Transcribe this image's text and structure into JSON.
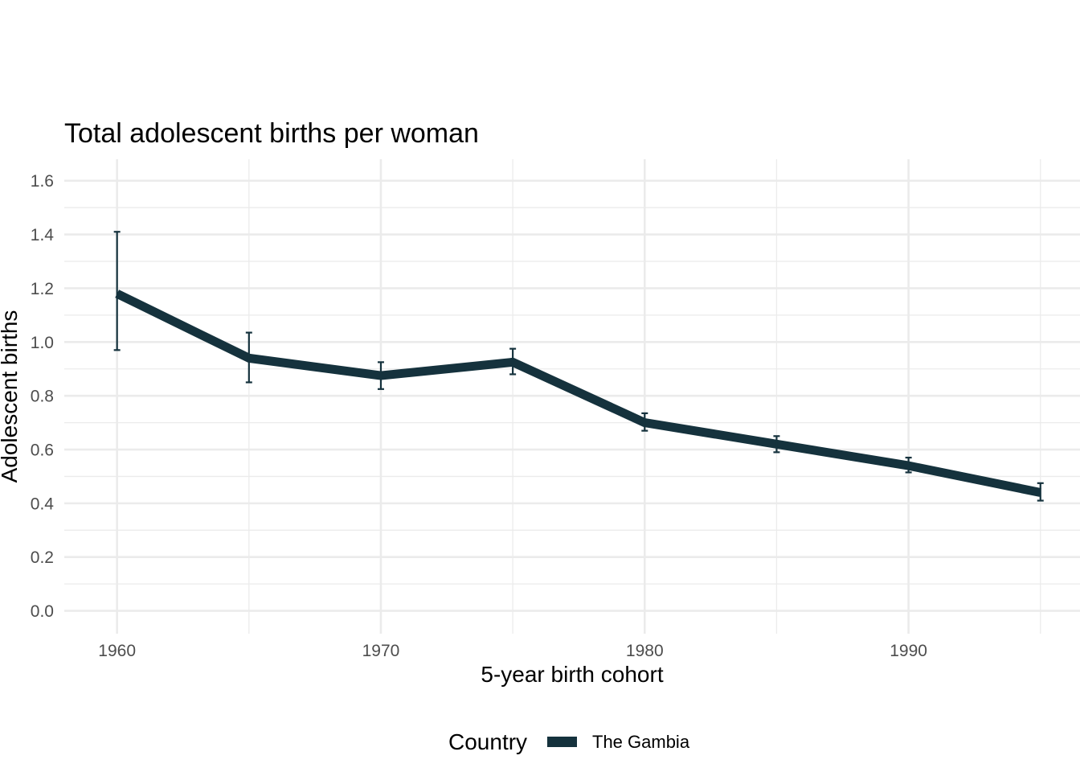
{
  "chart_data": {
    "type": "line",
    "title": "Total adolescent births per woman",
    "xlabel": "5-year birth cohort",
    "ylabel": "Adolescent births",
    "x": [
      1960,
      1965,
      1970,
      1975,
      1980,
      1985,
      1990,
      1995
    ],
    "series": [
      {
        "name": "The Gambia",
        "color": "#15323d",
        "values": [
          1.18,
          0.94,
          0.875,
          0.925,
          0.7,
          0.62,
          0.54,
          0.44
        ],
        "error_low": [
          0.97,
          0.85,
          0.825,
          0.88,
          0.67,
          0.59,
          0.515,
          0.41
        ],
        "error_high": [
          1.41,
          1.035,
          0.925,
          0.975,
          0.735,
          0.65,
          0.57,
          0.475
        ]
      }
    ],
    "xlim": [
      1958,
      1996.5
    ],
    "ylim": [
      -0.085,
      1.68
    ],
    "x_ticks": [
      1960,
      1970,
      1980,
      1990
    ],
    "x_tick_labels": [
      "1960",
      "1970",
      "1980",
      "1990"
    ],
    "x_minor_ticks": [
      1965,
      1975,
      1985,
      1995
    ],
    "y_ticks": [
      0.0,
      0.2,
      0.4,
      0.6,
      0.8,
      1.0,
      1.2,
      1.4,
      1.6
    ],
    "y_tick_labels": [
      "0.0",
      "0.2",
      "0.4",
      "0.6",
      "0.8",
      "1.0",
      "1.2",
      "1.4",
      "1.6"
    ],
    "y_minor_ticks": [
      0.1,
      0.3,
      0.5,
      0.7,
      0.9,
      1.1,
      1.3,
      1.5
    ],
    "grid": true,
    "legend": {
      "title": "Country",
      "position": "bottom",
      "entries": [
        "The Gambia"
      ]
    }
  }
}
